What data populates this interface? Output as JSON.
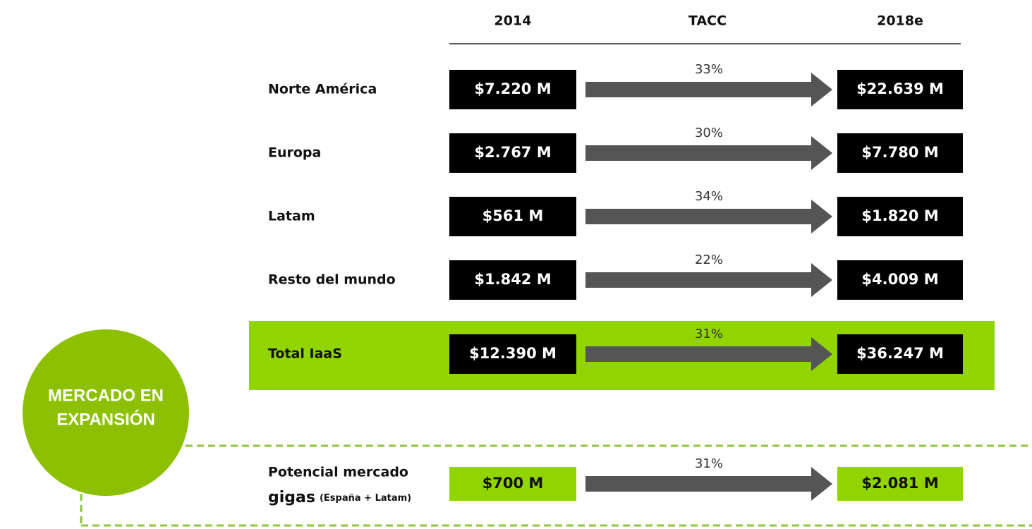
{
  "header": {
    "columns": [
      "2014",
      "TACC",
      "2018e"
    ]
  },
  "rows": [
    {
      "label": "Norte América",
      "start": "$7.220 M",
      "rate": "33%",
      "end": "$22.639 M"
    },
    {
      "label": "Europa",
      "start": "$2.767 M",
      "rate": "30%",
      "end": "$7.780 M"
    },
    {
      "label": "Latam",
      "start": "$561 M",
      "rate": "34%",
      "end": "$1.820 M"
    },
    {
      "label": "Resto del mundo",
      "start": "$1.842 M",
      "rate": "22%",
      "end": "$4.009 M"
    }
  ],
  "total": {
    "label": "Total IaaS",
    "start": "$12.390 M",
    "rate": "31%",
    "end": "$36.247 M"
  },
  "badge": {
    "lines": [
      "MERCADO EN",
      "EXPANSIÓN"
    ]
  },
  "potential": {
    "label_lines": [
      "Potencial mercado",
      "gigas"
    ],
    "note": "(España + Latam)",
    "start": "$700 M",
    "rate": "31%",
    "end": "$2.081 M"
  }
}
